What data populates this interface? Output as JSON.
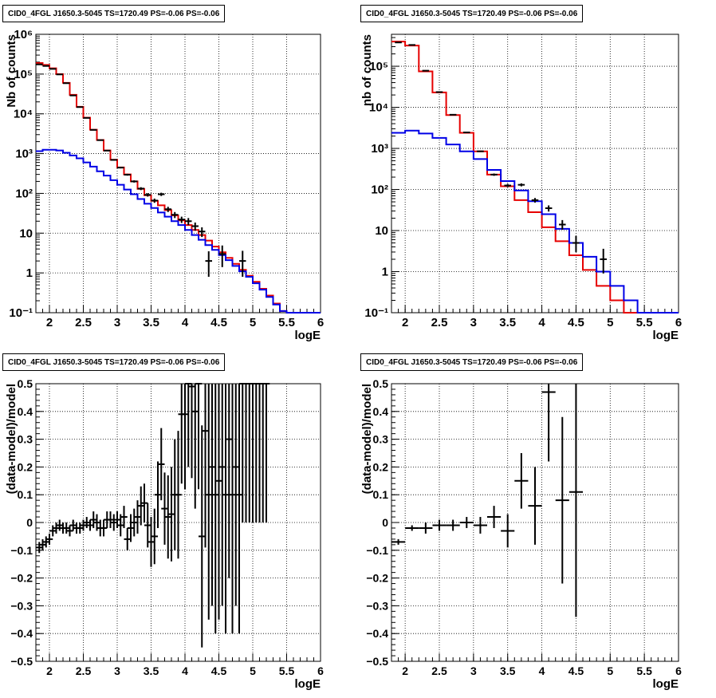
{
  "colors": {
    "data": "#000000",
    "model_total": "#e60000",
    "model_component": "#0000e6",
    "grid": "#000000",
    "axis": "#000000"
  },
  "chart_data": [
    {
      "type": "line",
      "title": "CID0_4FGL J1650.3-5045 TS=1720.49 PS=-0.06 PS=-0.06",
      "xlabel": "logE",
      "ylabel": "Nb of counts",
      "xlim": [
        1.8,
        6.0
      ],
      "ylim": [
        0.1,
        1000000
      ],
      "yscale": "log",
      "grid": true,
      "x_ticks": [
        "2",
        "2.5",
        "3",
        "3.5",
        "4",
        "4.5",
        "5",
        "5.5",
        "6"
      ],
      "y_ticks": [
        "10⁻¹",
        "1",
        "10",
        "10²",
        "10³",
        "10⁴",
        "10⁵",
        "10⁶"
      ],
      "series": [
        {
          "role": "model_total",
          "bin_edges": [
            1.8,
            1.9,
            2.0,
            2.1,
            2.2,
            2.3,
            2.4,
            2.5,
            2.6,
            2.7,
            2.8,
            2.9,
            3.0,
            3.1,
            3.2,
            3.3,
            3.4,
            3.5,
            3.6,
            3.7,
            3.8,
            3.9,
            4.0,
            4.1,
            4.2,
            4.3,
            4.4,
            4.5,
            4.6,
            4.7,
            4.8,
            4.9,
            5.0,
            5.1,
            5.2,
            5.3,
            5.4,
            5.5,
            5.6,
            5.7,
            5.8,
            5.9,
            6.0
          ],
          "values": [
            190000,
            170000,
            140000,
            100000,
            60000,
            30000,
            15000,
            8000,
            4000,
            2200,
            1200,
            700,
            450,
            300,
            200,
            130,
            90,
            65,
            50,
            38,
            28,
            21,
            16,
            12,
            9,
            6.5,
            4.6,
            3.3,
            2.4,
            1.7,
            1.2,
            0.85,
            0.6,
            0.4,
            0.27,
            0.17,
            0.11,
            0.1,
            0.1,
            0.1,
            0.1,
            0.1
          ]
        },
        {
          "role": "model_component",
          "bin_edges": [
            1.8,
            1.9,
            2.0,
            2.1,
            2.2,
            2.3,
            2.4,
            2.5,
            2.6,
            2.7,
            2.8,
            2.9,
            3.0,
            3.1,
            3.2,
            3.3,
            3.4,
            3.5,
            3.6,
            3.7,
            3.8,
            3.9,
            4.0,
            4.1,
            4.2,
            4.3,
            4.4,
            4.5,
            4.6,
            4.7,
            4.8,
            4.9,
            5.0,
            5.1,
            5.2,
            5.3,
            5.4,
            5.5,
            5.6,
            5.7,
            5.8,
            5.9,
            6.0
          ],
          "values": [
            1150,
            1250,
            1250,
            1200,
            1050,
            900,
            760,
            600,
            470,
            360,
            280,
            215,
            165,
            125,
            95,
            72,
            55,
            43,
            33,
            26,
            20,
            16,
            12,
            9,
            6.8,
            5,
            3.8,
            2.8,
            2.1,
            1.5,
            1.1,
            0.8,
            0.55,
            0.38,
            0.25,
            0.16,
            0.11,
            0.1,
            0.1,
            0.1,
            0.1,
            0.1
          ]
        },
        {
          "role": "data",
          "x": [
            1.85,
            1.95,
            2.05,
            2.15,
            2.25,
            2.35,
            2.45,
            2.55,
            2.65,
            2.75,
            2.85,
            2.95,
            3.05,
            3.15,
            3.25,
            3.35,
            3.45,
            3.55,
            3.65,
            3.75,
            3.85,
            3.95,
            4.05,
            4.15,
            4.25,
            4.35,
            4.55,
            4.85
          ],
          "y": [
            175000,
            160000,
            135000,
            98000,
            59000,
            29000,
            14800,
            7900,
            3950,
            2180,
            1190,
            695,
            445,
            295,
            200,
            132,
            92,
            66,
            95,
            40,
            29,
            22,
            20,
            15,
            11,
            2,
            3,
            2
          ],
          "yerr_low": [
            400,
            400,
            350,
            300,
            250,
            170,
            120,
            90,
            60,
            45,
            35,
            25,
            20,
            16,
            13,
            11,
            9,
            8,
            9,
            6,
            5,
            4,
            4,
            3.5,
            3,
            1.2,
            1.6,
            1.2
          ],
          "yerr_high": [
            400,
            400,
            350,
            300,
            250,
            170,
            120,
            90,
            60,
            45,
            35,
            25,
            20,
            16,
            13,
            11,
            9,
            8,
            9,
            6,
            5,
            4,
            4,
            3.5,
            3,
            1.5,
            1.9,
            1.6
          ]
        }
      ]
    },
    {
      "type": "line",
      "title": "CID0_4FGL J1650.3-5045 TS=1720.49 PS=-0.06 PS=-0.06",
      "xlabel": "logE",
      "ylabel": "nb of counts",
      "xlim": [
        1.8,
        6.0
      ],
      "ylim": [
        0.1,
        600000
      ],
      "yscale": "log",
      "grid": true,
      "x_ticks": [
        "2",
        "2.5",
        "3",
        "3.5",
        "4",
        "4.5",
        "5",
        "5.5",
        "6"
      ],
      "y_ticks": [
        "10⁻¹",
        "1",
        "10",
        "10²",
        "10³",
        "10⁴",
        "10⁵"
      ],
      "series": [
        {
          "role": "model_total",
          "bin_edges": [
            1.8,
            2.0,
            2.2,
            2.4,
            2.6,
            2.8,
            3.0,
            3.2,
            3.4,
            3.6,
            3.8,
            4.0,
            4.2,
            4.4,
            4.6,
            4.8,
            5.0,
            5.2,
            5.4,
            5.6,
            5.8,
            6.0
          ],
          "values": [
            400000,
            320000,
            75000,
            23000,
            6500,
            2400,
            850,
            230,
            120,
            55,
            28,
            12,
            5.5,
            2.5,
            1.1,
            0.45,
            0.2,
            0.1,
            0.1,
            0.1,
            0.1
          ]
        },
        {
          "role": "model_component",
          "bin_edges": [
            1.8,
            2.0,
            2.2,
            2.4,
            2.6,
            2.8,
            3.0,
            3.2,
            3.4,
            3.6,
            3.8,
            4.0,
            4.2,
            4.4,
            4.6,
            4.8,
            5.0,
            5.2,
            5.4,
            5.6,
            5.8,
            6.0
          ],
          "values": [
            2400,
            2700,
            2300,
            1800,
            1250,
            850,
            550,
            300,
            160,
            95,
            52,
            25,
            11,
            5,
            2.3,
            1,
            0.45,
            0.2,
            0.1,
            0.1,
            0.1
          ]
        },
        {
          "role": "data",
          "x": [
            1.9,
            2.1,
            2.3,
            2.5,
            2.7,
            2.9,
            3.1,
            3.3,
            3.5,
            3.7,
            3.9,
            4.1,
            4.3,
            4.5,
            4.9
          ],
          "y": [
            380000,
            330000,
            78000,
            23500,
            6600,
            2450,
            850,
            230,
            125,
            130,
            55,
            35,
            14,
            5,
            2
          ],
          "yerr_low": [
            600,
            580,
            280,
            150,
            80,
            50,
            29,
            15,
            11,
            11,
            7,
            6,
            3.5,
            2,
            1.1
          ],
          "yerr_high": [
            600,
            580,
            280,
            150,
            80,
            50,
            29,
            15,
            11,
            11,
            7,
            6,
            4,
            2.4,
            1.6
          ]
        }
      ]
    },
    {
      "type": "scatter",
      "title": "CID0_4FGL J1650.3-5045 TS=1720.49 PS=-0.06 PS=-0.06",
      "xlabel": "logE",
      "ylabel": "(data-model)/model",
      "xlim": [
        1.8,
        6.0
      ],
      "ylim": [
        -0.5,
        0.5
      ],
      "grid": true,
      "x_ticks": [
        "2",
        "2.5",
        "3",
        "3.5",
        "4",
        "4.5",
        "5",
        "5.5",
        "6"
      ],
      "y_ticks": [
        "−0.5",
        "−0.4",
        "−0.3",
        "−0.2",
        "−0.1",
        "0",
        "0.1",
        "0.2",
        "0.3",
        "0.4",
        "0.5"
      ],
      "y_tick_values": [
        -0.5,
        -0.4,
        -0.3,
        -0.2,
        -0.1,
        0,
        0.1,
        0.2,
        0.3,
        0.4,
        0.5
      ],
      "x_half_width": 0.05,
      "series": [
        {
          "role": "data",
          "x": [
            1.85,
            1.9,
            1.95,
            2.0,
            2.05,
            2.1,
            2.15,
            2.2,
            2.25,
            2.3,
            2.35,
            2.4,
            2.45,
            2.5,
            2.55,
            2.6,
            2.65,
            2.7,
            2.75,
            2.8,
            2.85,
            2.9,
            2.95,
            3.0,
            3.05,
            3.1,
            3.15,
            3.2,
            3.25,
            3.3,
            3.35,
            3.4,
            3.45,
            3.5,
            3.55,
            3.6,
            3.65,
            3.7,
            3.75,
            3.8,
            3.85,
            3.9,
            3.95,
            4.0,
            4.05,
            4.1,
            4.15,
            4.2,
            4.25,
            4.3,
            4.35,
            4.4,
            4.45,
            4.5,
            4.55,
            4.6,
            4.65,
            4.7,
            4.75,
            4.8,
            4.85,
            4.9,
            4.95,
            5.0,
            5.05,
            5.1,
            5.15,
            5.2
          ],
          "y": [
            -0.09,
            -0.08,
            -0.07,
            -0.06,
            -0.03,
            -0.02,
            -0.01,
            -0.02,
            -0.02,
            -0.03,
            -0.01,
            -0.02,
            -0.02,
            -0.01,
            0,
            -0.01,
            0.01,
            0,
            -0.02,
            -0.02,
            0.01,
            0.01,
            0,
            0.01,
            -0.01,
            0.02,
            -0.06,
            -0.02,
            0,
            0.02,
            0.06,
            0.07,
            -0.01,
            -0.07,
            -0.05,
            0.1,
            0.21,
            0.05,
            0.02,
            0.03,
            0.1,
            0.1,
            0.39,
            0.39,
            0.5,
            0.49,
            0.4,
            0.5,
            -0.05,
            0.33,
            0.1,
            0.2,
            0.1,
            0.15,
            0.2,
            0.1,
            0.3,
            0.1,
            0.2,
            0.1,
            0.5,
            0.5,
            0.5,
            0.5,
            0.5,
            0.5,
            0.5,
            0.5
          ],
          "yerr": [
            0.02,
            0.02,
            0.02,
            0.02,
            0.02,
            0.02,
            0.02,
            0.02,
            0.02,
            0.02,
            0.02,
            0.02,
            0.02,
            0.02,
            0.02,
            0.02,
            0.03,
            0.03,
            0.03,
            0.03,
            0.03,
            0.03,
            0.03,
            0.03,
            0.04,
            0.04,
            0.04,
            0.05,
            0.05,
            0.06,
            0.07,
            0.07,
            0.08,
            0.09,
            0.1,
            0.12,
            0.13,
            0.13,
            0.15,
            0.17,
            0.2,
            0.23,
            0.25,
            0.27,
            0.3,
            0.33,
            0.35,
            0.38,
            0.4,
            0.42,
            0.45,
            0.5,
            0.5,
            0.5,
            0.5,
            0.5,
            0.5,
            0.5,
            0.5,
            0.5,
            0.5,
            0.5,
            0.5,
            0.5,
            0.5,
            0.5,
            0.5,
            0.5
          ]
        }
      ]
    },
    {
      "type": "scatter",
      "title": "CID0_4FGL J1650.3-5045 TS=1720.49 PS=-0.06 PS=-0.06",
      "xlabel": "logE",
      "ylabel": "(data-model)/model",
      "xlim": [
        1.8,
        6.0
      ],
      "ylim": [
        -0.5,
        0.5
      ],
      "grid": true,
      "x_ticks": [
        "2",
        "2.5",
        "3",
        "3.5",
        "4",
        "4.5",
        "5",
        "5.5",
        "6"
      ],
      "y_ticks": [
        "−0.5",
        "−0.4",
        "−0.3",
        "−0.2",
        "−0.1",
        "0",
        "0.1",
        "0.2",
        "0.3",
        "0.4",
        "0.5"
      ],
      "y_tick_values": [
        -0.5,
        -0.4,
        -0.3,
        -0.2,
        -0.1,
        0,
        0.1,
        0.2,
        0.3,
        0.4,
        0.5
      ],
      "x_half_width": 0.1,
      "series": [
        {
          "role": "data",
          "x": [
            1.9,
            2.1,
            2.3,
            2.5,
            2.7,
            2.9,
            3.1,
            3.3,
            3.5,
            3.7,
            3.9,
            4.1,
            4.3,
            4.5
          ],
          "y": [
            -0.07,
            -0.02,
            -0.02,
            -0.01,
            -0.01,
            0,
            -0.01,
            0.02,
            -0.03,
            0.15,
            0.06,
            0.47,
            0.08,
            0.11
          ],
          "yerr": [
            0.01,
            0.01,
            0.02,
            0.02,
            0.02,
            0.02,
            0.03,
            0.04,
            0.06,
            0.1,
            0.14,
            0.25,
            0.3,
            0.45
          ]
        }
      ]
    }
  ]
}
